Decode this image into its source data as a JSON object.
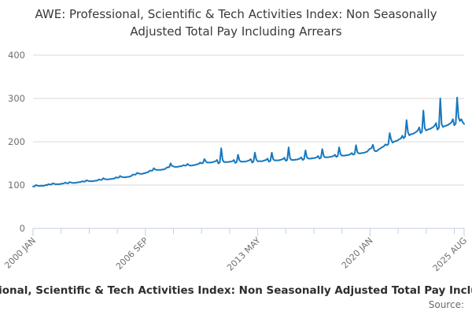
{
  "header": {
    "title": "AWE: Professional, Scientific & Tech Activities Index: Non Seasonally Adjusted Total Pay Including Arrears"
  },
  "footer": {
    "caption": "AWE: Professional, Scientific & Tech Activities Index: Non Seasonally Adjusted Total Pay Including Arrears",
    "source_label": "Source:"
  },
  "chart_data": {
    "type": "line",
    "title": "AWE: Professional, Scientific & Tech Activities Index: Non Seasonally Adjusted Total Pay Including Arrears",
    "xlabel": "",
    "ylabel": "",
    "ylim": [
      0,
      400
    ],
    "y_ticks": [
      0,
      100,
      200,
      300,
      400
    ],
    "grid": "horizontal",
    "legend": "none",
    "x_start": "2000 JAN",
    "x_end": "2025 AUG",
    "frequency": "monthly",
    "minor_tick_interval_months": 20,
    "x_tick_labels": [
      {
        "month_index": 0,
        "label": "2000 JAN"
      },
      {
        "month_index": 80,
        "label": "2006 SEP"
      },
      {
        "month_index": 160,
        "label": "2013 MAY"
      },
      {
        "month_index": 240,
        "label": "2020 JAN"
      },
      {
        "month_index": 307,
        "label": "2025 AUG"
      }
    ],
    "colors": {
      "line": "#1778be",
      "gridline": "#d9d9d9",
      "axis": "#c3cce2",
      "tick_label": "#6f6f6f"
    },
    "series": [
      {
        "name": "AWE: Professional, Scientific & Tech Activities Index: Non Seasonally Adjusted Total Pay Including Arrears",
        "start": "2000-01",
        "end": "2025-08",
        "values": [
          97,
          97,
          100,
          99,
          98,
          98,
          99,
          98,
          99,
          100,
          100,
          102,
          101,
          101,
          104,
          103,
          102,
          102,
          102,
          102,
          103,
          103,
          104,
          106,
          104,
          104,
          107,
          106,
          105,
          105,
          105,
          106,
          106,
          107,
          107,
          109,
          108,
          108,
          111,
          110,
          109,
          109,
          109,
          109,
          110,
          110,
          111,
          113,
          112,
          112,
          116,
          114,
          113,
          113,
          113,
          114,
          114,
          115,
          115,
          118,
          117,
          117,
          121,
          119,
          118,
          118,
          118,
          119,
          119,
          120,
          121,
          124,
          124,
          124,
          128,
          127,
          126,
          126,
          126,
          127,
          128,
          129,
          130,
          133,
          133,
          133,
          139,
          136,
          135,
          135,
          135,
          135,
          136,
          136,
          137,
          140,
          141,
          141,
          150,
          144,
          143,
          142,
          142,
          142,
          143,
          143,
          144,
          146,
          145,
          145,
          149,
          146,
          145,
          145,
          146,
          146,
          147,
          148,
          149,
          152,
          150,
          151,
          160,
          155,
          152,
          152,
          152,
          152,
          153,
          154,
          155,
          158,
          150,
          152,
          185,
          158,
          153,
          153,
          153,
          153,
          154,
          154,
          155,
          158,
          151,
          153,
          170,
          157,
          154,
          154,
          154,
          154,
          155,
          156,
          157,
          160,
          152,
          154,
          175,
          159,
          155,
          155,
          155,
          155,
          156,
          157,
          158,
          161,
          154,
          156,
          175,
          160,
          157,
          157,
          157,
          157,
          158,
          159,
          160,
          163,
          156,
          158,
          187,
          162,
          158,
          158,
          158,
          159,
          159,
          160,
          161,
          164,
          158,
          160,
          180,
          164,
          161,
          161,
          161,
          162,
          162,
          163,
          164,
          167,
          161,
          163,
          183,
          167,
          164,
          164,
          164,
          165,
          165,
          166,
          167,
          170,
          165,
          167,
          187,
          171,
          168,
          168,
          168,
          169,
          169,
          170,
          171,
          174,
          170,
          172,
          192,
          176,
          173,
          173,
          174,
          174,
          175,
          176,
          177,
          181,
          184,
          185,
          193,
          180,
          178,
          179,
          182,
          184,
          186,
          188,
          190,
          194,
          192,
          194,
          220,
          205,
          198,
          200,
          201,
          202,
          204,
          206,
          208,
          214,
          208,
          212,
          250,
          222,
          215,
          217,
          218,
          219,
          221,
          223,
          226,
          233,
          220,
          223,
          272,
          231,
          226,
          228,
          229,
          230,
          232,
          234,
          237,
          243,
          228,
          232,
          300,
          240,
          234,
          236,
          237,
          238,
          240,
          242,
          245,
          252,
          238,
          242,
          302,
          256,
          248,
          252,
          245,
          241
        ]
      }
    ]
  }
}
